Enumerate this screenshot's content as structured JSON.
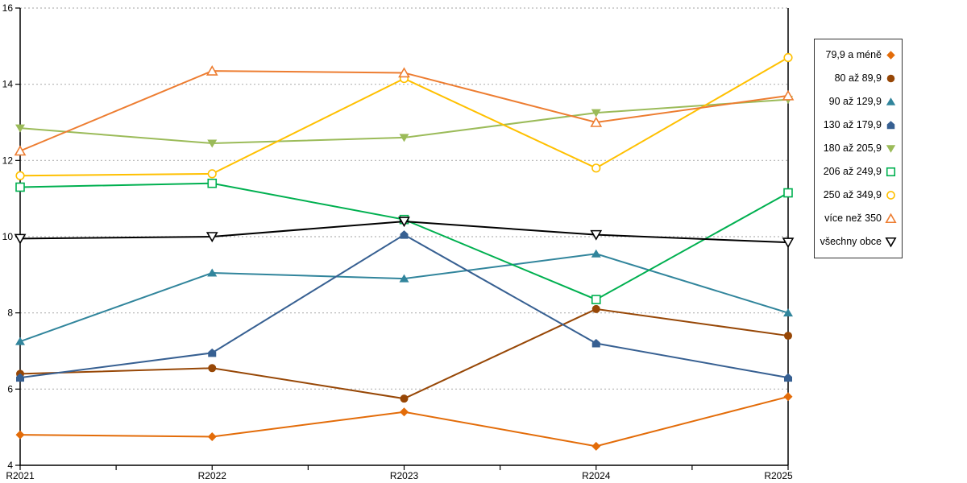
{
  "chart_data": {
    "type": "line",
    "title": "",
    "xlabel": "",
    "ylabel": "",
    "categories": [
      "R2021",
      "R2022",
      "R2023",
      "R2024",
      "R2025"
    ],
    "ylim": [
      4,
      16
    ],
    "yticks": [
      4,
      6,
      8,
      10,
      12,
      14,
      16
    ],
    "grid": "horizontal-dotted",
    "legend_position": "right-outside",
    "axis_color": "#000000",
    "gridline_color": "#b3b3b3",
    "series": [
      {
        "name": "79,9 a méně",
        "marker": "diamond-filled",
        "color": "#e36c09",
        "values": [
          4.8,
          4.75,
          5.4,
          4.5,
          5.8
        ]
      },
      {
        "name": "80 až 89,9",
        "marker": "circle-filled",
        "color": "#974706",
        "values": [
          6.4,
          6.55,
          5.75,
          8.1,
          7.4
        ]
      },
      {
        "name": "90 až 129,9",
        "marker": "triangle-up-filled",
        "color": "#31859c",
        "values": [
          7.25,
          9.05,
          8.9,
          9.55,
          8.0
        ]
      },
      {
        "name": "130 až 179,9",
        "marker": "pentagon-filled",
        "color": "#376092",
        "values": [
          6.3,
          6.95,
          10.05,
          7.2,
          6.3
        ]
      },
      {
        "name": "180 až 205,9",
        "marker": "triangle-down-filled",
        "color": "#9bbb59",
        "values": [
          12.85,
          12.45,
          12.6,
          13.25,
          13.6
        ]
      },
      {
        "name": "206 až 249,9",
        "marker": "square-open",
        "color": "#00b050",
        "values": [
          11.3,
          11.4,
          10.45,
          8.35,
          11.15
        ]
      },
      {
        "name": "250 až 349,9",
        "marker": "circle-open",
        "color": "#ffc000",
        "values": [
          11.6,
          11.65,
          14.15,
          11.8,
          14.7
        ]
      },
      {
        "name": "více než 350",
        "marker": "triangle-up-open",
        "color": "#ed7d31",
        "values": [
          12.25,
          14.35,
          14.3,
          13.0,
          13.7
        ]
      },
      {
        "name": "všechny obce",
        "marker": "triangle-down-open",
        "color": "#000000",
        "values": [
          9.95,
          10.0,
          10.4,
          10.05,
          9.85
        ]
      }
    ]
  }
}
